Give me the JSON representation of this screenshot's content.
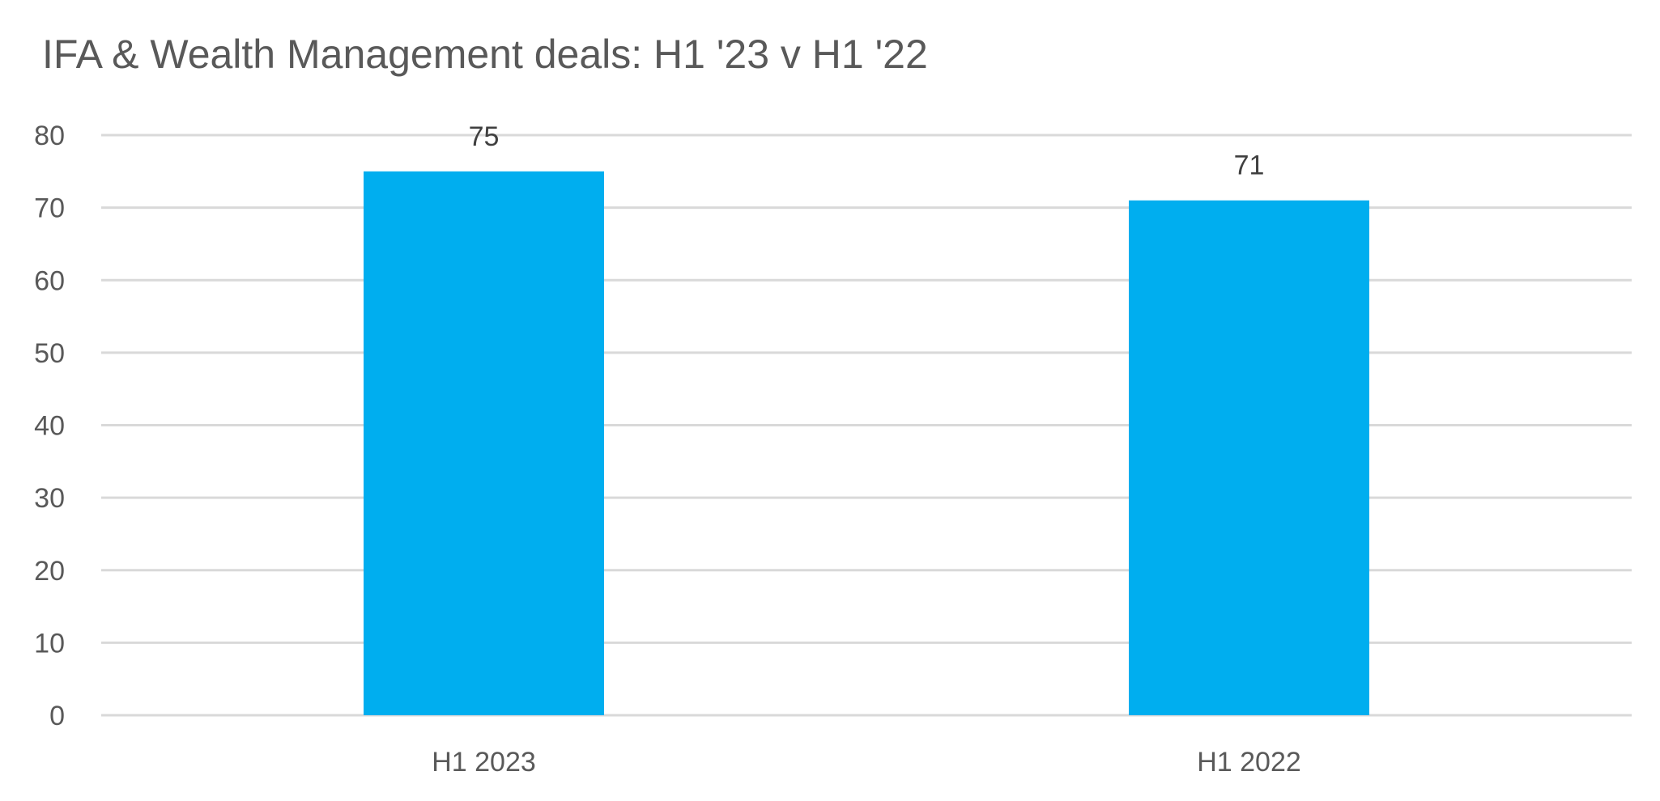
{
  "chart_data": {
    "type": "bar",
    "title": "IFA & Wealth Management deals: H1 '23 v H1 '22",
    "categories": [
      "H1 2023",
      "H1 2022"
    ],
    "values": [
      75,
      71
    ],
    "data_labels": [
      "75",
      "71"
    ],
    "ylim": [
      0,
      80
    ],
    "yticks": [
      0,
      10,
      20,
      30,
      40,
      50,
      60,
      70,
      80
    ],
    "ytick_labels": [
      "0",
      "10",
      "20",
      "30",
      "40",
      "50",
      "60",
      "70",
      "80"
    ],
    "xlabel": "",
    "ylabel": "",
    "grid": true,
    "legend": "none",
    "colors": {
      "bar": "#00AEEF",
      "grid": "#d9d9d9",
      "text": "#595959",
      "data_label": "#404040"
    }
  }
}
